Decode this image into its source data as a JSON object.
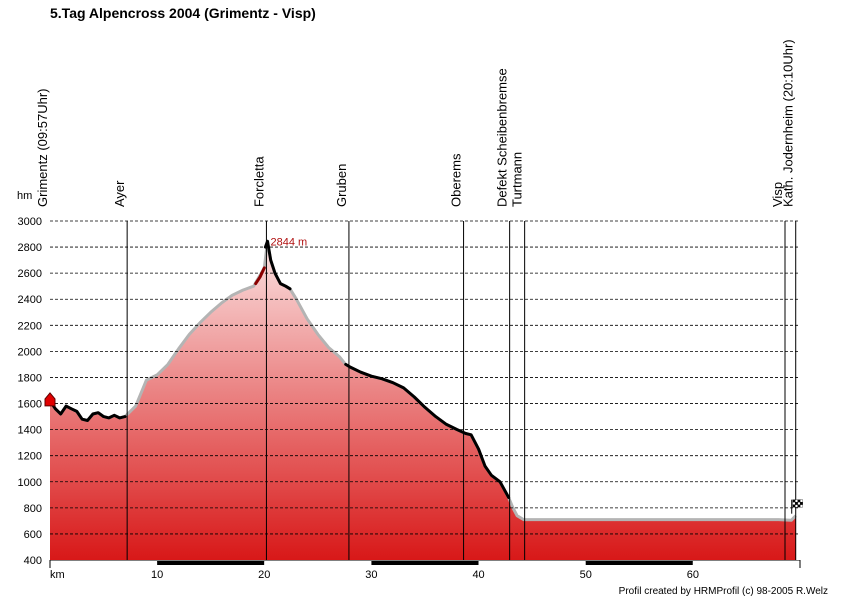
{
  "chart_data": {
    "type": "area",
    "title": "5.Tag Alpencross 2004 (Grimentz - Visp)",
    "ylabel": "hm",
    "xlabel": "km",
    "ylim": [
      400,
      3000
    ],
    "xlim": [
      0,
      70
    ],
    "yticks": [
      400,
      600,
      800,
      1000,
      1200,
      1400,
      1600,
      1800,
      2000,
      2200,
      2400,
      2600,
      2800,
      3000
    ],
    "xticks": [
      10,
      20,
      30,
      40,
      50,
      60
    ],
    "grid": true,
    "profile": {
      "x": [
        0,
        0.5,
        1,
        1.5,
        2,
        2.5,
        3,
        3.5,
        4,
        4.5,
        5,
        5.5,
        6,
        6.5,
        7,
        8,
        9,
        10,
        11,
        12,
        13,
        14,
        15,
        16,
        17,
        18,
        19,
        19.5,
        20,
        20.3,
        20.6,
        21,
        21.5,
        22,
        22.4,
        23,
        24,
        25,
        26,
        27,
        27.6,
        28,
        29,
        30,
        31,
        32,
        33,
        34,
        35,
        36,
        37,
        38,
        38.8,
        39.3,
        40,
        40.6,
        41.2,
        42,
        42.8,
        43.2,
        43.6,
        44.2,
        45,
        50,
        55,
        60,
        65,
        67,
        68,
        69.2,
        69.6
      ],
      "y": [
        1620,
        1560,
        1520,
        1580,
        1560,
        1540,
        1480,
        1470,
        1520,
        1530,
        1500,
        1490,
        1510,
        1490,
        1500,
        1580,
        1780,
        1820,
        1900,
        2020,
        2130,
        2220,
        2300,
        2370,
        2430,
        2470,
        2500,
        2570,
        2640,
        2844,
        2700,
        2600,
        2520,
        2500,
        2480,
        2400,
        2250,
        2130,
        2030,
        1960,
        1900,
        1880,
        1840,
        1810,
        1790,
        1760,
        1720,
        1650,
        1570,
        1500,
        1440,
        1400,
        1370,
        1360,
        1250,
        1120,
        1050,
        1000,
        880,
        800,
        740,
        710,
        710,
        710,
        710,
        710,
        710,
        710,
        710,
        705,
        740
      ]
    },
    "tracked_segments": [
      {
        "color": "#000000",
        "x": [
          0,
          0.5,
          1,
          1.5,
          2,
          2.5,
          3,
          3.5,
          4,
          4.5,
          5,
          5.5,
          6,
          6.5,
          7
        ],
        "y": [
          1620,
          1560,
          1520,
          1580,
          1560,
          1540,
          1480,
          1470,
          1520,
          1530,
          1500,
          1490,
          1510,
          1490,
          1500
        ]
      },
      {
        "color": "#8b0000",
        "x": [
          19.2,
          19.6,
          20
        ],
        "y": [
          2520,
          2570,
          2640
        ]
      },
      {
        "color": "#000000",
        "x": [
          20.1,
          20.3,
          20.6,
          21,
          21.5,
          22,
          22.4
        ],
        "y": [
          2800,
          2844,
          2700,
          2600,
          2520,
          2500,
          2480
        ]
      },
      {
        "color": "#000000",
        "x": [
          27.6,
          28,
          29,
          30,
          31,
          32,
          33,
          34,
          35,
          36,
          37,
          38,
          38.8,
          39.3,
          40,
          40.6,
          41.2,
          42,
          42.8
        ],
        "y": [
          1900,
          1880,
          1840,
          1810,
          1790,
          1760,
          1720,
          1650,
          1570,
          1500,
          1440,
          1400,
          1370,
          1360,
          1250,
          1120,
          1050,
          1000,
          880
        ]
      }
    ],
    "waypoints": [
      {
        "km": 0,
        "label": "Grimentz (09:57Uhr)"
      },
      {
        "km": 7.2,
        "label": "Ayer"
      },
      {
        "km": 20.2,
        "label": "Forcletta"
      },
      {
        "km": 27.9,
        "label": "Gruben"
      },
      {
        "km": 38.6,
        "label": "Oberems"
      },
      {
        "km": 42.9,
        "label": "Defekt Scheibenbremse"
      },
      {
        "km": 44.3,
        "label": "Turtmann"
      },
      {
        "km": 68.6,
        "label": "Visp"
      },
      {
        "km": 69.6,
        "label": "Kath. Jodernheim (20:10Uhr)"
      }
    ],
    "annotations": [
      {
        "label": "2844 m",
        "km": 20.3,
        "value": 2844,
        "color": "#b01010"
      }
    ],
    "colors": {
      "fill_top": "#fbe3e3",
      "fill_bottom": "#d81818",
      "outline": "#b4b4b4"
    }
  },
  "footer": {
    "credit": "Profil created by HRMProfil (c) 98-2005 R.Welz"
  }
}
